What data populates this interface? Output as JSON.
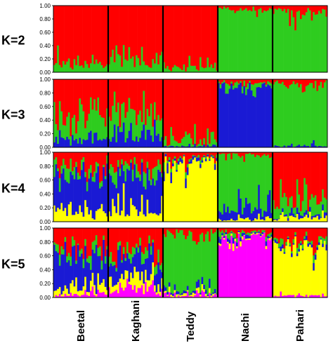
{
  "chart_data": {
    "type": "bar",
    "subtype": "stacked-structure-plot",
    "title": "",
    "xlabel": "",
    "ylabel": "",
    "ylim": [
      0,
      1
    ],
    "y_ticks": [
      "0.00",
      "0.20",
      "0.40",
      "0.60",
      "0.80",
      "1.00"
    ],
    "populations": [
      "Beetal",
      "Kaghani",
      "Teddy",
      "Nachi",
      "Pahari"
    ],
    "cluster_colors": {
      "red": "#ff0000",
      "green": "#2ecc1f",
      "blue": "#1a1ad4",
      "yellow": "#ffff00",
      "magenta": "#ff00ff"
    },
    "panels": [
      {
        "label": "K=2",
        "clusters": [
          "red",
          "green"
        ],
        "mean_membership_by_population": [
          {
            "population": "Beetal",
            "values": [
              0.82,
              0.18
            ]
          },
          {
            "population": "Kaghani",
            "values": [
              0.8,
              0.2
            ]
          },
          {
            "population": "Teddy",
            "values": [
              0.88,
              0.12
            ]
          },
          {
            "population": "Nachi",
            "values": [
              0.06,
              0.94
            ]
          },
          {
            "population": "Pahari",
            "values": [
              0.12,
              0.88
            ]
          }
        ]
      },
      {
        "label": "K=3",
        "clusters": [
          "red",
          "green",
          "blue"
        ],
        "mean_membership_by_population": [
          {
            "population": "Beetal",
            "values": [
              0.45,
              0.4,
              0.15
            ]
          },
          {
            "population": "Kaghani",
            "values": [
              0.4,
              0.4,
              0.2
            ]
          },
          {
            "population": "Teddy",
            "values": [
              0.88,
              0.1,
              0.02
            ]
          },
          {
            "population": "Nachi",
            "values": [
              0.05,
              0.07,
              0.88
            ]
          },
          {
            "population": "Pahari",
            "values": [
              0.1,
              0.87,
              0.03
            ]
          }
        ]
      },
      {
        "label": "K=4",
        "clusters": [
          "red",
          "green",
          "blue",
          "yellow"
        ],
        "mean_membership_by_population": [
          {
            "population": "Beetal",
            "values": [
              0.25,
              0.15,
              0.42,
              0.18
            ]
          },
          {
            "population": "Kaghani",
            "values": [
              0.22,
              0.18,
              0.35,
              0.25
            ]
          },
          {
            "population": "Teddy",
            "values": [
              0.08,
              0.04,
              0.05,
              0.83
            ]
          },
          {
            "population": "Nachi",
            "values": [
              0.05,
              0.7,
              0.2,
              0.05
            ]
          },
          {
            "population": "Pahari",
            "values": [
              0.62,
              0.25,
              0.05,
              0.08
            ]
          }
        ]
      },
      {
        "label": "K=5",
        "clusters": [
          "red",
          "green",
          "blue",
          "yellow",
          "magenta"
        ],
        "mean_membership_by_population": [
          {
            "population": "Beetal",
            "values": [
              0.3,
              0.1,
              0.45,
              0.1,
              0.05
            ]
          },
          {
            "population": "Kaghani",
            "values": [
              0.3,
              0.1,
              0.3,
              0.15,
              0.15
            ]
          },
          {
            "population": "Teddy",
            "values": [
              0.08,
              0.82,
              0.04,
              0.03,
              0.03
            ]
          },
          {
            "population": "Nachi",
            "values": [
              0.07,
              0.05,
              0.04,
              0.03,
              0.81
            ]
          },
          {
            "population": "Pahari",
            "values": [
              0.18,
              0.05,
              0.04,
              0.7,
              0.03
            ]
          }
        ]
      }
    ]
  }
}
